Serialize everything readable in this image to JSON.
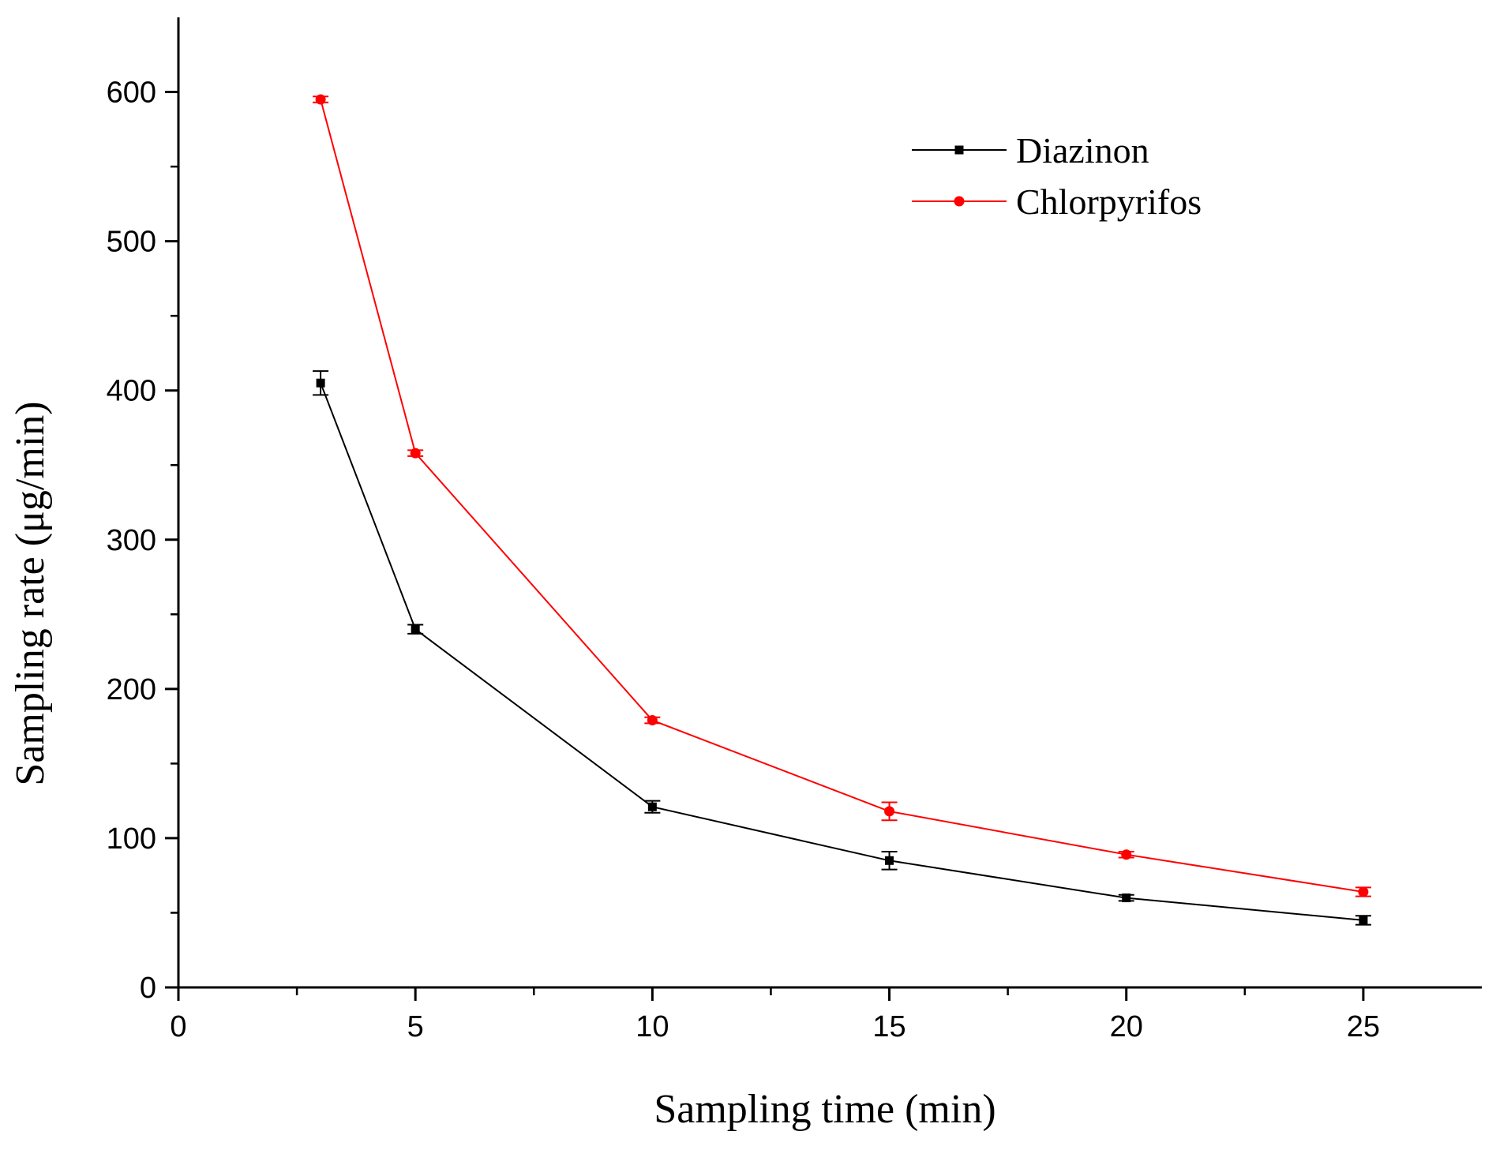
{
  "chart_data": {
    "type": "line",
    "title": "",
    "xlabel": "Sampling time (min)",
    "ylabel": "Sampling rate (μg/min)",
    "xlim": [
      0,
      27.5
    ],
    "ylim": [
      0,
      650
    ],
    "xticks": [
      0,
      5,
      10,
      15,
      20,
      25
    ],
    "xtick_labels": [
      "0",
      "5",
      "10",
      "15",
      "20",
      "25"
    ],
    "xminor_ticks": [
      2.5,
      7.5,
      12.5,
      17.5,
      22.5
    ],
    "yticks": [
      0,
      100,
      200,
      300,
      400,
      500,
      600
    ],
    "ytick_labels": [
      "0",
      "100",
      "200",
      "300",
      "400",
      "500",
      "600"
    ],
    "yminor_ticks": [
      50,
      150,
      250,
      350,
      450,
      550
    ],
    "legend_position": "top-right",
    "grid": false,
    "series": [
      {
        "name": "Diazinon",
        "color": "#000000",
        "marker": "square",
        "x": [
          3,
          5,
          10,
          15,
          20,
          25
        ],
        "values": [
          405,
          240,
          121,
          85,
          60,
          45
        ],
        "errors": [
          8,
          3,
          4,
          6,
          2,
          3
        ]
      },
      {
        "name": "Chlorpyrifos",
        "color": "#ff0000",
        "marker": "circle",
        "x": [
          3,
          5,
          10,
          15,
          20,
          25
        ],
        "values": [
          595,
          358,
          179,
          118,
          89,
          64
        ],
        "errors": [
          2,
          2,
          2,
          6,
          2,
          3
        ]
      }
    ]
  }
}
